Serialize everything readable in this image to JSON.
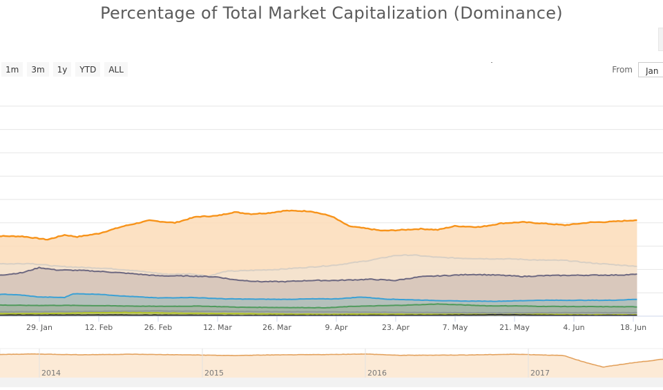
{
  "chart_data": {
    "type": "area",
    "title": "Percentage of Total Market Capitalization (Dominance)",
    "x_tick_labels": [
      "29. Jan",
      "12. Feb",
      "26. Feb",
      "12. Mar",
      "26. Mar",
      "9. Apr",
      "23. Apr",
      "7. May",
      "21. May",
      "4. Jun",
      "18. Jun"
    ],
    "ylim": [
      0,
      100
    ],
    "stacked": true,
    "grid": true,
    "series_note": "cumulative stacked top edges, percent",
    "series": [
      {
        "color": "#f7931a",
        "fill": "#fcdcb8",
        "values": [
          [
            0,
            34.4
          ],
          [
            8,
            34.2
          ],
          [
            14,
            32.8
          ],
          [
            18,
            34.8
          ],
          [
            21,
            34.0
          ],
          [
            26,
            35.4
          ],
          [
            32,
            38.6
          ],
          [
            38,
            41.0
          ],
          [
            44,
            40.0
          ],
          [
            49,
            42.6
          ],
          [
            54,
            43.0
          ],
          [
            58,
            44.6
          ],
          [
            62,
            43.8
          ],
          [
            66,
            44.2
          ],
          [
            70,
            45.2
          ],
          [
            76,
            45.0
          ],
          [
            81,
            42.8
          ],
          [
            85,
            38.6
          ],
          [
            89,
            37.6
          ],
          [
            93,
            36.6
          ],
          [
            97,
            36.9
          ],
          [
            102,
            37.4
          ],
          [
            106,
            37.0
          ],
          [
            110,
            38.6
          ],
          [
            116,
            38.2
          ],
          [
            121,
            39.8
          ],
          [
            126,
            40.3
          ],
          [
            132,
            39.6
          ],
          [
            136,
            39.0
          ],
          [
            142,
            40.2
          ],
          [
            146,
            40.4
          ],
          [
            153,
            41.2
          ]
        ]
      },
      {
        "color": "#d8cfc4",
        "fill": "#f3e3d0",
        "values": [
          [
            0,
            22.8
          ],
          [
            5,
            22.4
          ],
          [
            10,
            22.6
          ],
          [
            16,
            21.4
          ],
          [
            22,
            20.9
          ],
          [
            28,
            20.5
          ],
          [
            34,
            19.6
          ],
          [
            42,
            18.0
          ],
          [
            48,
            18.1
          ],
          [
            52,
            17.2
          ],
          [
            56,
            19.2
          ],
          [
            62,
            19.6
          ],
          [
            68,
            20.0
          ],
          [
            76,
            21.0
          ],
          [
            82,
            21.9
          ],
          [
            90,
            23.9
          ],
          [
            96,
            26.0
          ],
          [
            100,
            26.2
          ],
          [
            106,
            25.2
          ],
          [
            112,
            24.8
          ],
          [
            118,
            24.6
          ],
          [
            124,
            24.5
          ],
          [
            130,
            24.0
          ],
          [
            136,
            23.9
          ],
          [
            142,
            22.8
          ],
          [
            148,
            22.0
          ],
          [
            153,
            21.4
          ]
        ]
      },
      {
        "color": "#6d6880",
        "fill": "#d3c3b8",
        "values": [
          [
            0,
            17.4
          ],
          [
            4,
            17.8
          ],
          [
            8,
            18.6
          ],
          [
            12,
            20.8
          ],
          [
            16,
            19.8
          ],
          [
            22,
            19.6
          ],
          [
            28,
            19.0
          ],
          [
            34,
            18.2
          ],
          [
            40,
            17.3
          ],
          [
            48,
            17.2
          ],
          [
            54,
            16.8
          ],
          [
            58,
            15.6
          ],
          [
            64,
            14.8
          ],
          [
            70,
            14.8
          ],
          [
            76,
            15.3
          ],
          [
            82,
            15.3
          ],
          [
            90,
            15.8
          ],
          [
            96,
            15.3
          ],
          [
            102,
            16.9
          ],
          [
            108,
            17.4
          ],
          [
            114,
            17.9
          ],
          [
            120,
            17.6
          ],
          [
            126,
            17.0
          ],
          [
            132,
            17.4
          ],
          [
            138,
            17.5
          ],
          [
            144,
            17.6
          ],
          [
            148,
            17.6
          ],
          [
            153,
            17.9
          ]
        ]
      },
      {
        "color": "#3aa0d5",
        "fill": "#adbebb",
        "values": [
          [
            0,
            9.0
          ],
          [
            4,
            9.4
          ],
          [
            8,
            9.0
          ],
          [
            12,
            8.2
          ],
          [
            18,
            8.0
          ],
          [
            20,
            9.6
          ],
          [
            26,
            9.4
          ],
          [
            32,
            8.6
          ],
          [
            40,
            7.8
          ],
          [
            48,
            8.0
          ],
          [
            56,
            7.4
          ],
          [
            62,
            7.3
          ],
          [
            70,
            7.2
          ],
          [
            76,
            7.4
          ],
          [
            82,
            7.4
          ],
          [
            88,
            8.2
          ],
          [
            94,
            7.3
          ],
          [
            100,
            7.0
          ],
          [
            110,
            6.5
          ],
          [
            120,
            6.4
          ],
          [
            130,
            6.8
          ],
          [
            140,
            6.8
          ],
          [
            147,
            6.8
          ],
          [
            153,
            7.2
          ]
        ]
      },
      {
        "color": "#4f9a5c",
        "fill": "#a4b5a3",
        "values": [
          [
            0,
            4.8
          ],
          [
            10,
            4.6
          ],
          [
            20,
            4.6
          ],
          [
            30,
            4.4
          ],
          [
            40,
            4.2
          ],
          [
            50,
            4.3
          ],
          [
            60,
            3.8
          ],
          [
            70,
            3.7
          ],
          [
            80,
            3.6
          ],
          [
            86,
            4.2
          ],
          [
            94,
            4.5
          ],
          [
            100,
            4.8
          ],
          [
            106,
            5.2
          ],
          [
            112,
            4.8
          ],
          [
            118,
            4.4
          ],
          [
            124,
            4.4
          ],
          [
            130,
            4.2
          ],
          [
            140,
            4.1
          ],
          [
            153,
            4.0
          ]
        ]
      },
      {
        "color": "#8f9a9a",
        "fill": "#aab0a8",
        "values": [
          [
            0,
            1.8
          ],
          [
            20,
            2.0
          ],
          [
            40,
            2.2
          ],
          [
            60,
            2.0
          ],
          [
            80,
            1.8
          ],
          [
            100,
            1.6
          ],
          [
            120,
            1.4
          ],
          [
            140,
            1.5
          ],
          [
            153,
            1.5
          ]
        ]
      },
      {
        "color": "#b4c42c",
        "fill": "#c4cd72",
        "values": [
          [
            0,
            1.0
          ],
          [
            10,
            1.1
          ],
          [
            20,
            1.3
          ],
          [
            30,
            1.6
          ],
          [
            40,
            1.4
          ],
          [
            50,
            1.2
          ],
          [
            60,
            1.1
          ],
          [
            70,
            0.9
          ],
          [
            80,
            0.8
          ],
          [
            90,
            0.9
          ],
          [
            100,
            0.8
          ],
          [
            110,
            0.8
          ],
          [
            120,
            0.7
          ],
          [
            130,
            0.8
          ],
          [
            140,
            0.6
          ],
          [
            153,
            0.6
          ]
        ]
      },
      {
        "color": "#333333",
        "fill": "#8c8b55",
        "values": [
          [
            0,
            0.4
          ],
          [
            30,
            0.5
          ],
          [
            60,
            0.3
          ],
          [
            90,
            0.3
          ],
          [
            110,
            0.4
          ],
          [
            120,
            0.6
          ],
          [
            130,
            0.4
          ],
          [
            140,
            0.3
          ],
          [
            153,
            0.3
          ]
        ]
      }
    ],
    "navigator": {
      "years": [
        "2014",
        "2015",
        "2016",
        "2017"
      ],
      "values": [
        [
          0,
          88
        ],
        [
          0.05,
          90
        ],
        [
          0.12,
          87
        ],
        [
          0.2,
          89
        ],
        [
          0.3,
          86
        ],
        [
          0.35,
          84
        ],
        [
          0.4,
          86
        ],
        [
          0.5,
          88
        ],
        [
          0.55,
          90
        ],
        [
          0.6,
          85
        ],
        [
          0.7,
          86
        ],
        [
          0.78,
          89
        ],
        [
          0.85,
          84
        ],
        [
          0.88,
          60
        ],
        [
          0.91,
          40
        ],
        [
          0.95,
          55
        ],
        [
          1.0,
          70
        ]
      ]
    }
  },
  "controls": {
    "zoom_buttons": [
      "1m",
      "3m",
      "1y",
      "YTD",
      "ALL"
    ],
    "from_label": "From",
    "from_value": "Jan"
  }
}
